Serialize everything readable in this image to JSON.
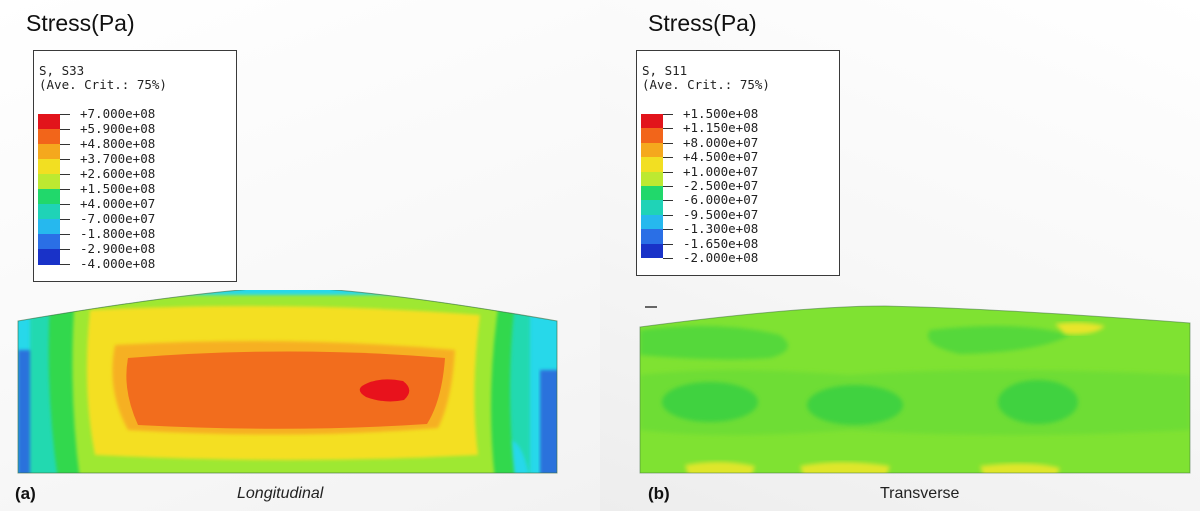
{
  "panels": [
    {
      "id": "a",
      "title": "Stress(Pa)",
      "legend": {
        "variable": "S, S33",
        "criterion": "(Ave. Crit.: 75%)",
        "labels": [
          "+7.000e+08",
          "+5.900e+08",
          "+4.800e+08",
          "+3.700e+08",
          "+2.600e+08",
          "+1.500e+08",
          "+4.000e+07",
          "-7.000e+07",
          "-1.800e+08",
          "-2.900e+08",
          "-4.000e+08"
        ]
      },
      "panel_label": "(a)",
      "caption": "Longitudinal"
    },
    {
      "id": "b",
      "title": "Stress(Pa)",
      "legend": {
        "variable": "S, S11",
        "criterion": "(Ave. Crit.: 75%)",
        "labels": [
          "+1.500e+08",
          "+1.150e+08",
          "+8.000e+07",
          "+4.500e+07",
          "+1.000e+07",
          "-2.500e+07",
          "-6.000e+07",
          "-9.500e+07",
          "-1.300e+08",
          "-1.650e+08",
          "-2.000e+08"
        ]
      },
      "panel_label": "(b)",
      "caption": "Transverse"
    }
  ],
  "colors": {
    "contour_bands": [
      "#e2141b",
      "#f2651a",
      "#f5a81d",
      "#f2df22",
      "#bde931",
      "#6fe02a",
      "#21d86b",
      "#1fd3b7",
      "#26b8ee",
      "#2a6fe6",
      "#1932c8"
    ],
    "red": "#e2141b",
    "orange": "#f26d1d",
    "yellow": "#f5dc23",
    "lime": "#9ee832",
    "green": "#4ad63a",
    "cyan": "#22d5e8",
    "blue": "#2660d8"
  }
}
